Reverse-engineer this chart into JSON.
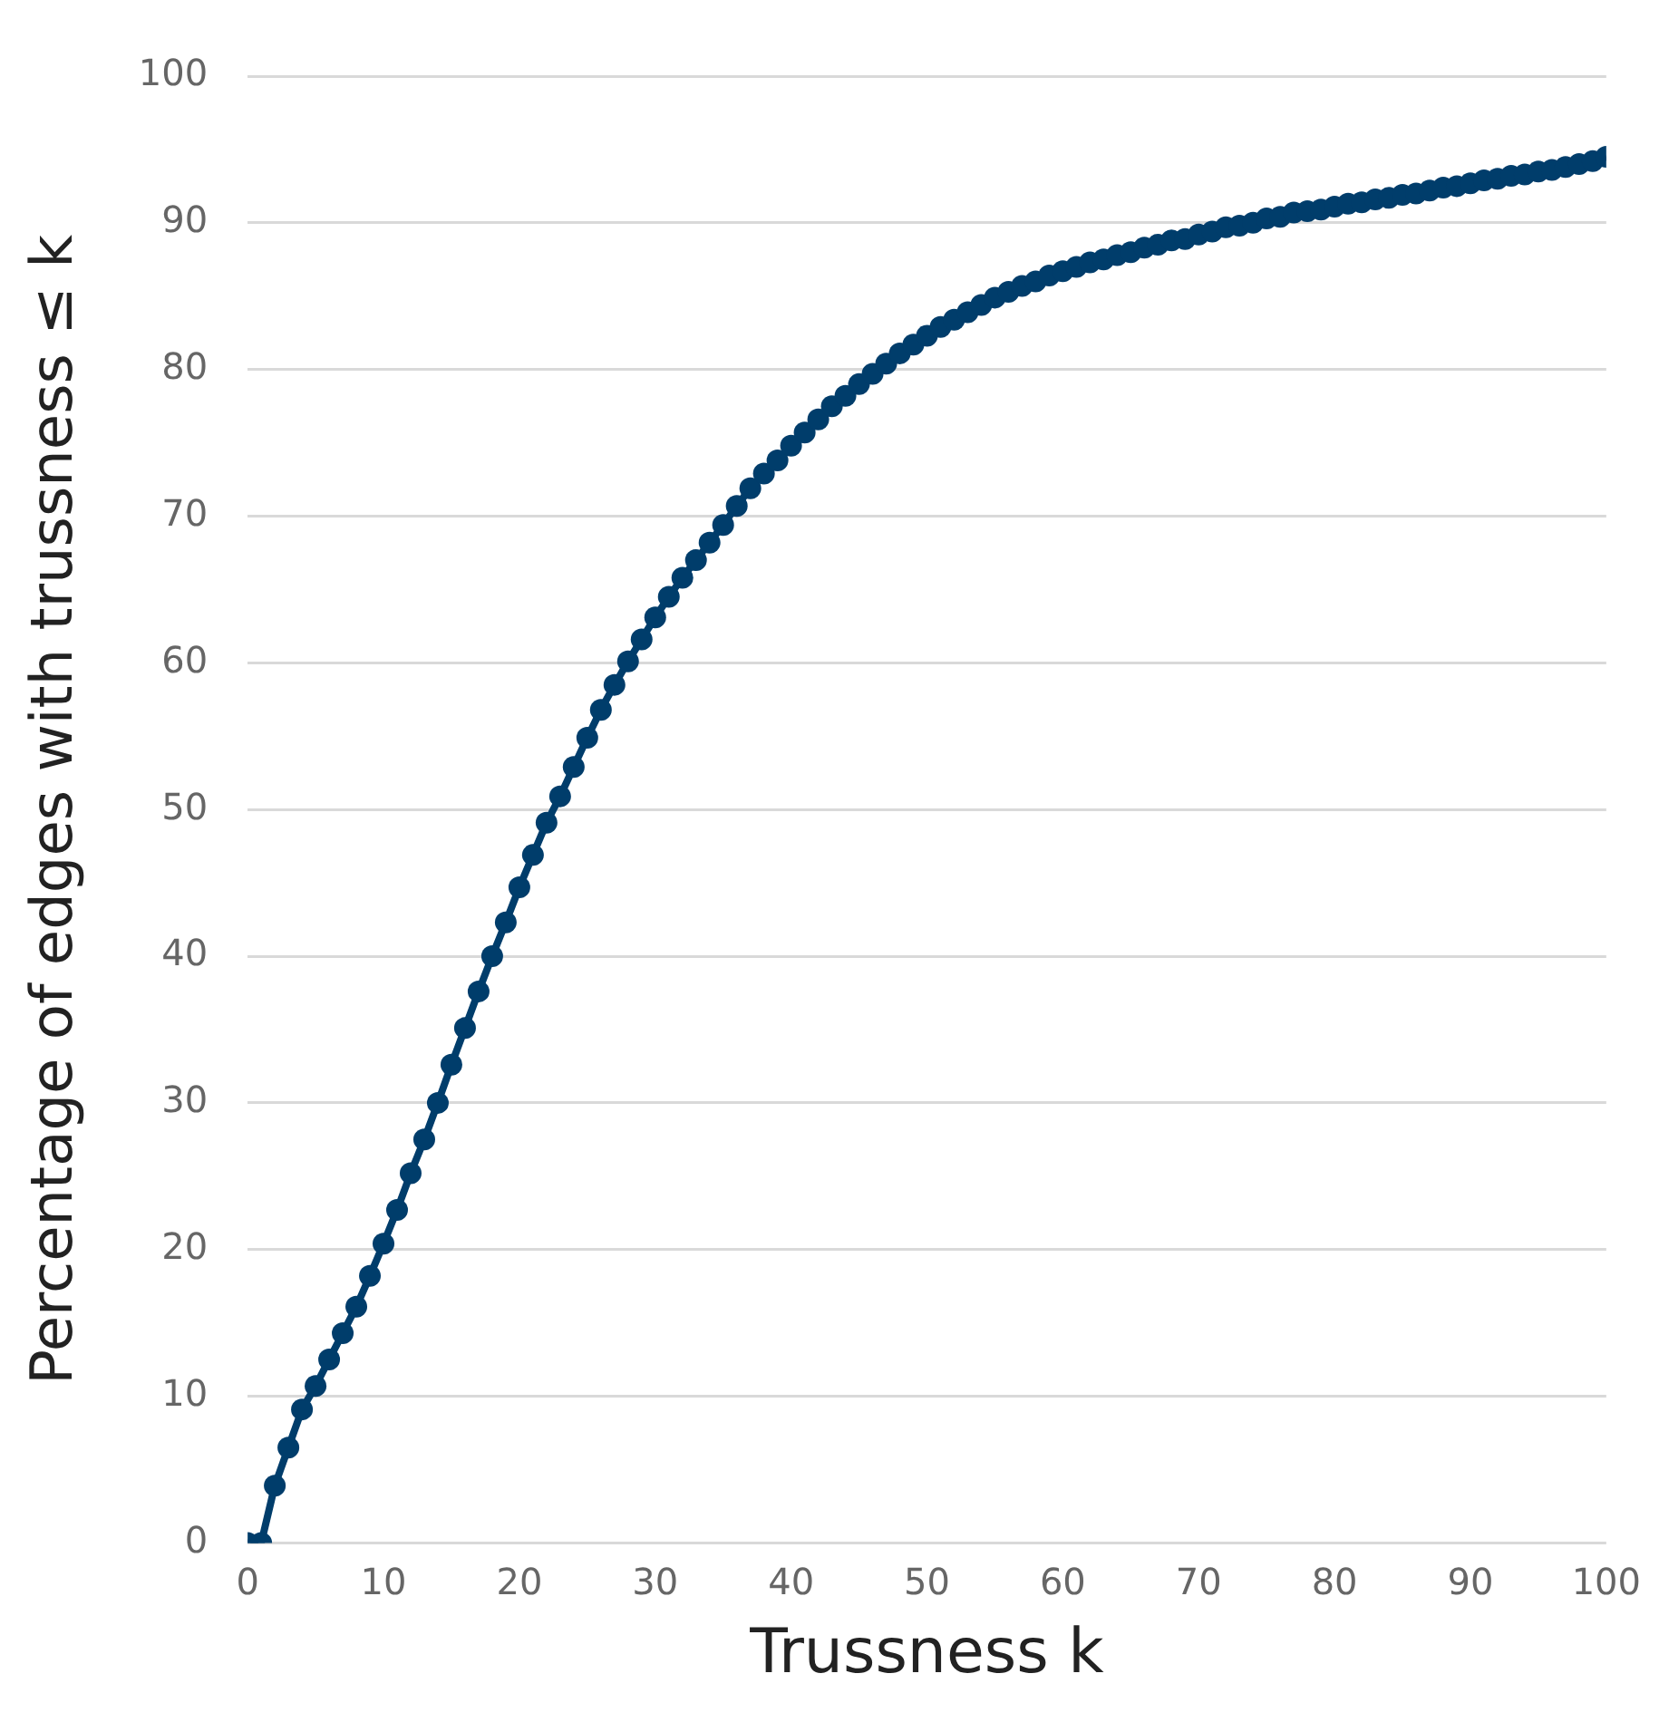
{
  "chart_data": {
    "type": "line",
    "xlabel": "Trussness k",
    "ylabel": "Percentage of edges with trussness ≤ k",
    "x": [
      0,
      1,
      2,
      3,
      4,
      5,
      6,
      7,
      8,
      9,
      10,
      11,
      12,
      13,
      14,
      15,
      16,
      17,
      18,
      19,
      20,
      21,
      22,
      23,
      24,
      25,
      26,
      27,
      28,
      29,
      30,
      31,
      32,
      33,
      34,
      35,
      36,
      37,
      38,
      39,
      40,
      41,
      42,
      43,
      44,
      45,
      46,
      47,
      48,
      49,
      50,
      51,
      52,
      53,
      54,
      55,
      56,
      57,
      58,
      59,
      60,
      61,
      62,
      63,
      64,
      65,
      66,
      67,
      68,
      69,
      70,
      71,
      72,
      73,
      74,
      75,
      76,
      77,
      78,
      79,
      80,
      81,
      82,
      83,
      84,
      85,
      86,
      87,
      88,
      89,
      90,
      91,
      92,
      93,
      94,
      95,
      96,
      97,
      98,
      99,
      100
    ],
    "series": [
      {
        "color": "#003d6b",
        "values": [
          0,
          0,
          3.9,
          6.5,
          9.1,
          10.7,
          12.5,
          14.3,
          16.1,
          18.2,
          20.4,
          22.7,
          25.2,
          27.5,
          30,
          32.6,
          35.1,
          37.6,
          40,
          42.3,
          44.7,
          46.9,
          49.1,
          50.9,
          52.9,
          54.9,
          56.8,
          58.5,
          60.1,
          61.6,
          63.1,
          64.5,
          65.8,
          67,
          68.2,
          69.4,
          70.7,
          71.9,
          72.9,
          73.8,
          74.8,
          75.7,
          76.6,
          77.5,
          78.2,
          79,
          79.7,
          80.4,
          81.1,
          81.7,
          82.3,
          82.9,
          83.4,
          83.9,
          84.4,
          84.9,
          85.3,
          85.7,
          86,
          86.4,
          86.7,
          87,
          87.3,
          87.5,
          87.8,
          88,
          88.3,
          88.5,
          88.8,
          88.9,
          89.2,
          89.4,
          89.7,
          89.8,
          90,
          90.3,
          90.4,
          90.7,
          90.8,
          90.9,
          91.1,
          91.3,
          91.4,
          91.6,
          91.7,
          91.9,
          92,
          92.2,
          92.4,
          92.5,
          92.7,
          92.9,
          93,
          93.2,
          93.3,
          93.5,
          93.6,
          93.8,
          94,
          94.2,
          94.5
        ]
      }
    ],
    "xlim": [
      0,
      100
    ],
    "xticks": [
      0,
      10,
      20,
      30,
      40,
      50,
      60,
      70,
      80,
      90,
      100
    ],
    "ylim": [
      0,
      100
    ],
    "yticks": [
      0,
      10,
      20,
      30,
      40,
      50,
      60,
      70,
      80,
      90,
      100
    ],
    "grid": "y",
    "legend": false,
    "marker": "circle",
    "line_style": "solid"
  }
}
